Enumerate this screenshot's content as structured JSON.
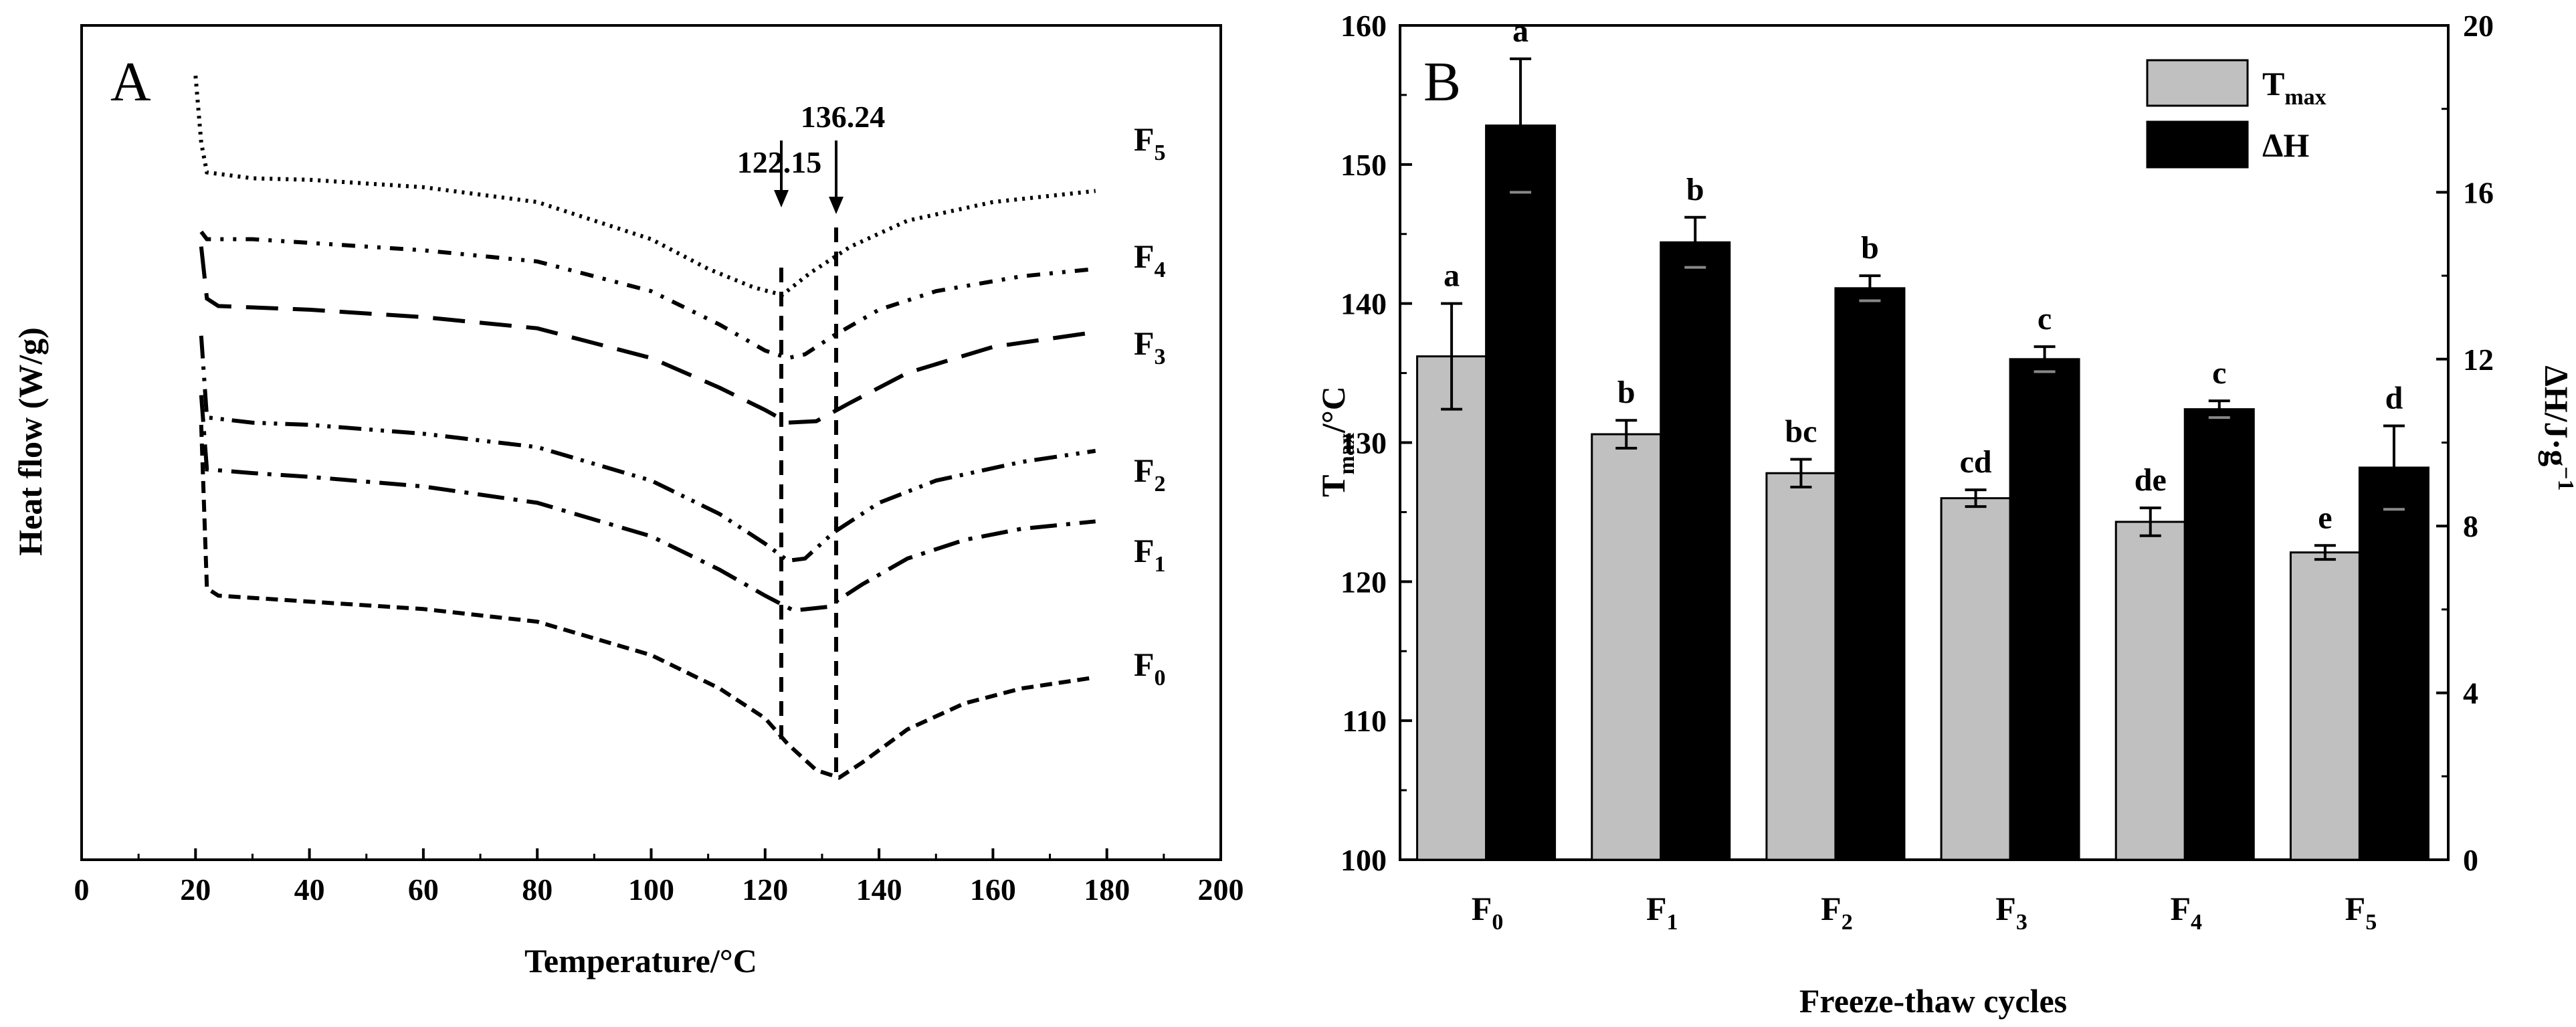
{
  "chart_data": [
    {
      "panel": "A",
      "type": "line",
      "xlabel": "Temperature/°C",
      "ylabel": "Heat flow (W/g)",
      "xlim": [
        0,
        200
      ],
      "xticks": [
        "0",
        "20",
        "40",
        "60",
        "80",
        "100",
        "120",
        "140",
        "160",
        "180",
        "200"
      ],
      "annotations": [
        {
          "text": "122.15",
          "x": 122.15
        },
        {
          "text": "136.24",
          "x": 136.24
        }
      ],
      "series": [
        {
          "name": "F",
          "sub": "5",
          "style": "dotted",
          "points": [
            [
              20,
              97
            ],
            [
              21,
              88
            ],
            [
              22,
              84
            ],
            [
              30,
              83.2
            ],
            [
              40,
              83
            ],
            [
              60,
              82
            ],
            [
              80,
              80
            ],
            [
              100,
              75
            ],
            [
              110,
              71
            ],
            [
              118,
              68.5
            ],
            [
              123,
              67.5
            ],
            [
              128,
              70.5
            ],
            [
              135,
              74
            ],
            [
              145,
              77.5
            ],
            [
              160,
              80
            ],
            [
              178,
              81.5
            ]
          ]
        },
        {
          "name": "F",
          "sub": "4",
          "style": "dash-dot-dot",
          "points": [
            [
              21,
              76
            ],
            [
              22,
              75
            ],
            [
              30,
              75
            ],
            [
              40,
              74.5
            ],
            [
              60,
              73.5
            ],
            [
              80,
              72
            ],
            [
              100,
              68
            ],
            [
              112,
              63.5
            ],
            [
              120,
              60
            ],
            [
              124,
              59
            ],
            [
              127,
              59.5
            ],
            [
              132,
              62
            ],
            [
              140,
              65.5
            ],
            [
              150,
              68
            ],
            [
              165,
              70
            ],
            [
              178,
              71
            ]
          ]
        },
        {
          "name": "F",
          "sub": "3",
          "style": "long-dash",
          "points": [
            [
              21,
              74
            ],
            [
              22,
              67
            ],
            [
              24,
              66
            ],
            [
              40,
              65.5
            ],
            [
              60,
              64.5
            ],
            [
              80,
              63
            ],
            [
              100,
              59
            ],
            [
              112,
              55
            ],
            [
              120,
              52
            ],
            [
              124,
              50.3
            ],
            [
              129,
              50.5
            ],
            [
              135,
              53
            ],
            [
              145,
              57
            ],
            [
              160,
              60.5
            ],
            [
              178,
              62.5
            ]
          ]
        },
        {
          "name": "F",
          "sub": "2",
          "style": "dash-dot-dot-long",
          "points": [
            [
              21,
              62
            ],
            [
              22,
              51
            ],
            [
              30,
              50.3
            ],
            [
              40,
              50
            ],
            [
              60,
              48.8
            ],
            [
              80,
              47
            ],
            [
              100,
              42.5
            ],
            [
              112,
              38
            ],
            [
              120,
              34
            ],
            [
              124,
              31.7
            ],
            [
              127,
              32
            ],
            [
              132,
              35.5
            ],
            [
              140,
              39.5
            ],
            [
              150,
              42.5
            ],
            [
              165,
              45
            ],
            [
              178,
              46.5
            ]
          ]
        },
        {
          "name": "F",
          "sub": "1",
          "style": "dash-dot",
          "points": [
            [
              21,
              54
            ],
            [
              22,
              44
            ],
            [
              30,
              43.5
            ],
            [
              40,
              43
            ],
            [
              60,
              41.7
            ],
            [
              80,
              39.5
            ],
            [
              100,
              35
            ],
            [
              112,
              30.5
            ],
            [
              120,
              27
            ],
            [
              125,
              25
            ],
            [
              131,
              25.5
            ],
            [
              137,
              28.5
            ],
            [
              145,
              32
            ],
            [
              155,
              34.5
            ],
            [
              165,
              36
            ],
            [
              178,
              37
            ]
          ]
        },
        {
          "name": "F",
          "sub": "0",
          "style": "short-dash",
          "points": [
            [
              21,
              50
            ],
            [
              22,
              28
            ],
            [
              24,
              27
            ],
            [
              30,
              26.7
            ],
            [
              40,
              26.2
            ],
            [
              60,
              25.2
            ],
            [
              80,
              23.5
            ],
            [
              100,
              19
            ],
            [
              112,
              14.5
            ],
            [
              120,
              10.5
            ],
            [
              124,
              7
            ],
            [
              129,
              3.5
            ],
            [
              133,
              2.5
            ],
            [
              137,
              4.5
            ],
            [
              145,
              9
            ],
            [
              155,
              12.5
            ],
            [
              165,
              14.5
            ],
            [
              178,
              16
            ]
          ]
        }
      ]
    },
    {
      "panel": "B",
      "type": "bar",
      "xlabel": "Freeze-thaw cycles",
      "ylabel_left": {
        "main": "T",
        "sub": "max",
        "rest": "/°C"
      },
      "ylabel_right": "ΔH/J·g",
      "ylabel_right_sup": "−1",
      "ylim_left": [
        100,
        160
      ],
      "ylim_right": [
        0,
        20
      ],
      "yticks_left": [
        "100",
        "110",
        "120",
        "130",
        "140",
        "150",
        "160"
      ],
      "yticks_right": [
        "0",
        "4",
        "8",
        "12",
        "16",
        "20"
      ],
      "categories": [
        {
          "main": "F",
          "sub": "0"
        },
        {
          "main": "F",
          "sub": "1"
        },
        {
          "main": "F",
          "sub": "2"
        },
        {
          "main": "F",
          "sub": "3"
        },
        {
          "main": "F",
          "sub": "4"
        },
        {
          "main": "F",
          "sub": "5"
        }
      ],
      "series": [
        {
          "name": "T",
          "name_sub": "max",
          "axis": "left",
          "color": "#c0c0c0",
          "values": [
            136.2,
            130.6,
            127.8,
            126.0,
            124.3,
            122.1
          ],
          "errors": [
            3.8,
            1.0,
            1.0,
            0.6,
            1.0,
            0.5
          ],
          "letters": [
            "a",
            "b",
            "bc",
            "cd",
            "de",
            "e"
          ]
        },
        {
          "name": "ΔH",
          "axis": "right",
          "color": "#000000",
          "values": [
            17.6,
            14.8,
            13.7,
            12.0,
            10.8,
            9.4
          ],
          "errors": [
            1.6,
            0.6,
            0.3,
            0.3,
            0.2,
            1.0
          ],
          "letters": [
            "a",
            "b",
            "b",
            "c",
            "c",
            "d"
          ]
        }
      ]
    }
  ]
}
